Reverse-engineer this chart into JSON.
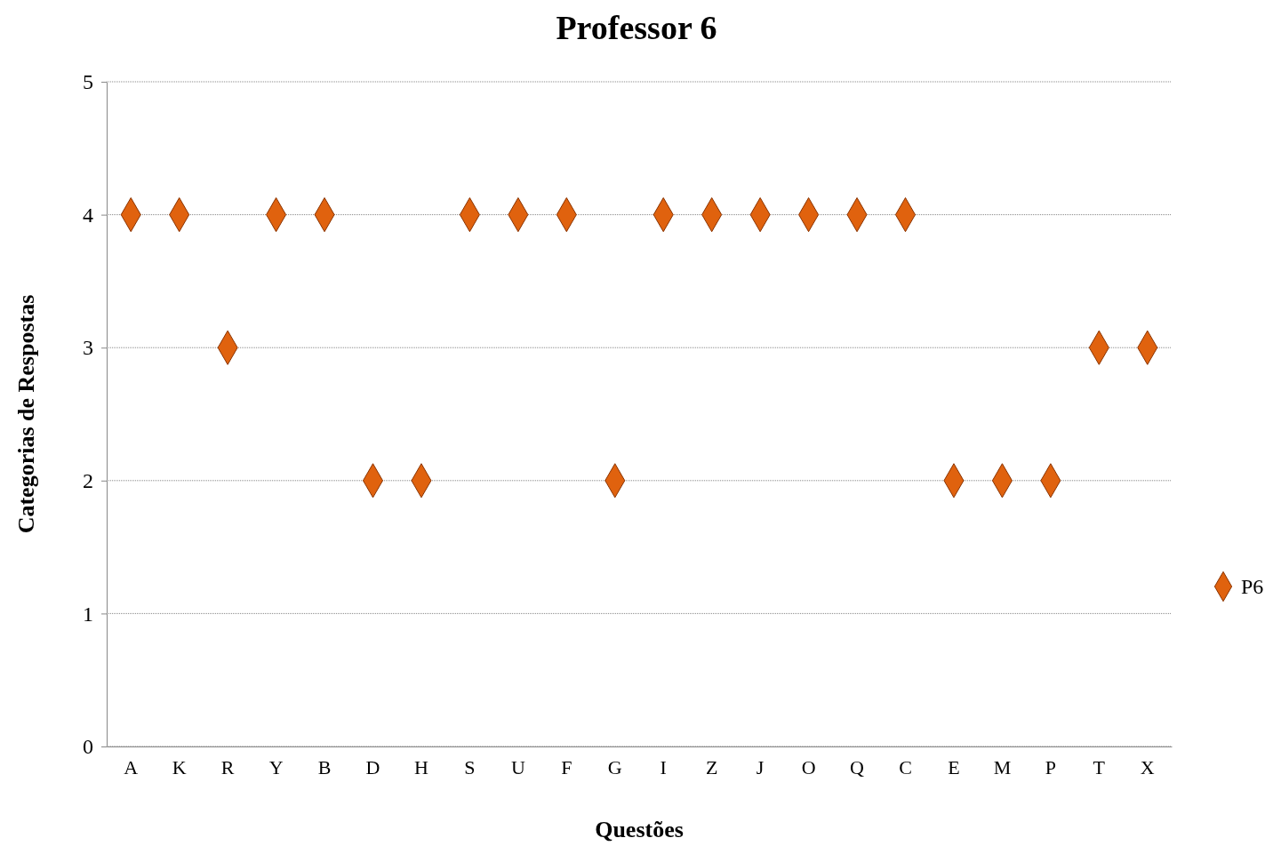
{
  "chart_data": {
    "type": "scatter",
    "title": "Professor 6",
    "xlabel": "Questões",
    "ylabel": "Categorias de Respostas",
    "categories": [
      "A",
      "K",
      "R",
      "Y",
      "B",
      "D",
      "H",
      "S",
      "U",
      "F",
      "G",
      "I",
      "Z",
      "J",
      "O",
      "Q",
      "C",
      "E",
      "M",
      "P",
      "T",
      "X"
    ],
    "series": [
      {
        "name": "P6",
        "color": "#e0620e",
        "values": [
          4,
          4,
          3,
          4,
          4,
          2,
          2,
          4,
          4,
          4,
          2,
          4,
          4,
          4,
          4,
          4,
          4,
          2,
          2,
          2,
          3,
          3
        ]
      }
    ],
    "ylim": [
      0,
      5
    ],
    "yticks": [
      0,
      1,
      2,
      3,
      4,
      5
    ],
    "grid": "y",
    "legend": "right",
    "marker": "diamond"
  }
}
